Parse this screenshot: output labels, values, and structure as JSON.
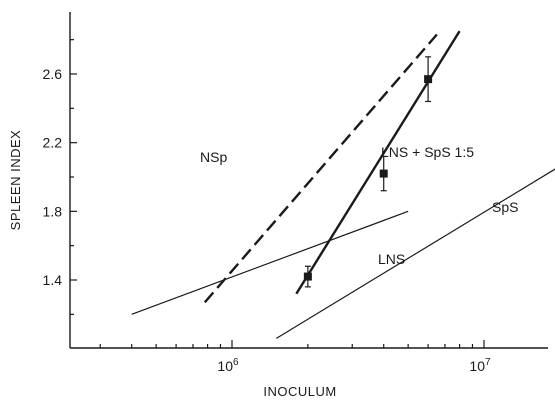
{
  "chart_data": {
    "type": "line",
    "title": "",
    "xlabel": "INOCULUM",
    "ylabel": "SPLEEN INDEX",
    "xscale": "log",
    "xlim": [
      200000,
      22000000
    ],
    "ylim": [
      1.05,
      2.85
    ],
    "x_tick_labels": [
      {
        "value": 1000000,
        "base": "10",
        "exp": "6"
      },
      {
        "value": 10000000,
        "base": "10",
        "exp": "7"
      }
    ],
    "y_ticks": [
      1.4,
      1.8,
      2.2,
      2.6
    ],
    "y_tick_labels": [
      "1.4",
      "1.8",
      "2.2",
      "2.6"
    ],
    "grid": false,
    "legend": "none",
    "series": [
      {
        "name": "NSp",
        "style": "dashed-thick",
        "x": [
          780000,
          6500000
        ],
        "y": [
          1.27,
          2.83
        ]
      },
      {
        "name": "LNS + SpS 1:5",
        "style": "solid-thick",
        "x": [
          1800000,
          8000000
        ],
        "y": [
          1.32,
          2.85
        ]
      },
      {
        "name": "LNS",
        "style": "solid-thin",
        "x": [
          400000,
          5000000
        ],
        "y": [
          1.2,
          1.8
        ]
      },
      {
        "name": "SpS",
        "style": "solid-thin",
        "x": [
          1500000,
          22000000
        ],
        "y": [
          1.06,
          2.1
        ]
      }
    ],
    "points": {
      "series": "LNS + SpS 1:5",
      "x": [
        2000000,
        4000000,
        6000000
      ],
      "y": [
        1.42,
        2.02,
        2.57
      ],
      "err": [
        0.06,
        0.1,
        0.13
      ]
    }
  }
}
